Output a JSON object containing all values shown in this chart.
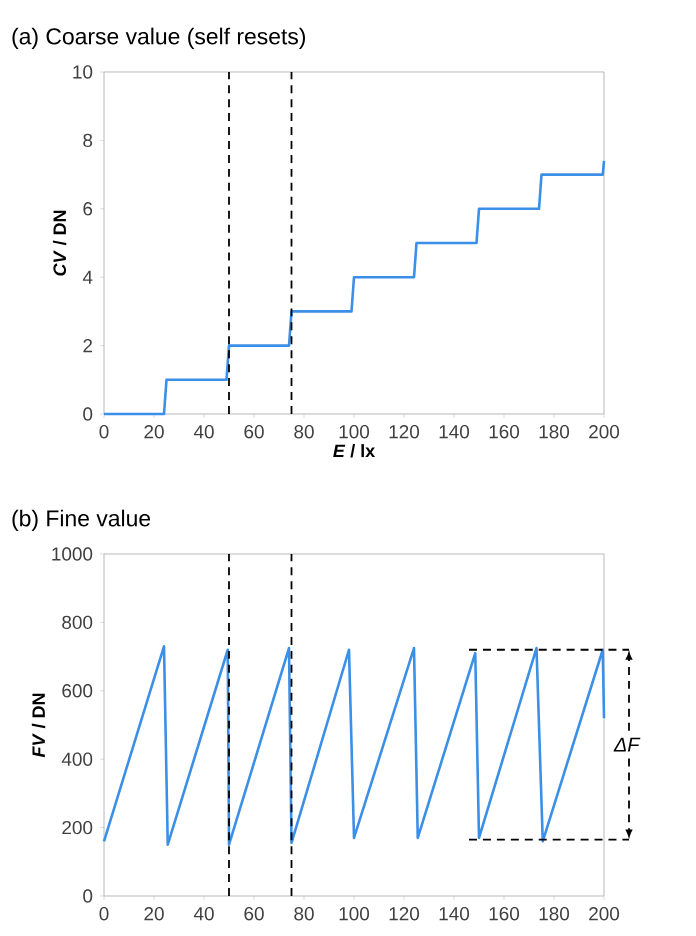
{
  "chart_data": [
    {
      "type": "line",
      "title": "(a) Coarse value (self resets)",
      "xlabel": "*E* / lx",
      "ylabel": "*CV* / DN",
      "x": [
        0,
        24,
        25,
        49,
        50,
        74,
        75,
        99,
        100,
        124,
        125,
        149,
        150,
        174,
        175,
        199.5,
        200
      ],
      "series": [
        {
          "color": "#3c8fe6",
          "values": [
            0,
            0,
            1,
            1,
            2,
            2,
            3,
            3,
            4,
            4,
            5,
            5,
            6,
            6,
            7,
            7,
            7.4
          ]
        }
      ],
      "xlim": [
        0,
        200
      ],
      "ylim": [
        0,
        10
      ],
      "xticks": [
        0,
        20,
        40,
        60,
        80,
        100,
        120,
        140,
        160,
        180,
        200
      ],
      "yticks": [
        0,
        2,
        4,
        6,
        8,
        10
      ],
      "ref_lines": [
        {
          "axis": "x",
          "value": 50,
          "line_style": "dashed"
        },
        {
          "axis": "x",
          "value": 75,
          "line_style": "dashed"
        }
      ]
    },
    {
      "type": "line",
      "title": "(b) Fine value",
      "ylabel": "*FV* / DN",
      "x": [
        0,
        24,
        25.5,
        49.5,
        50,
        74,
        75,
        98,
        100,
        124,
        125.5,
        148.5,
        150,
        173,
        175.5,
        199.5,
        200
      ],
      "series": [
        {
          "color": "#3c8fe6",
          "values": [
            160,
            730,
            150,
            720,
            150,
            725,
            155,
            720,
            170,
            725,
            170,
            710,
            170,
            725,
            160,
            720,
            520
          ]
        }
      ],
      "xlim": [
        0,
        200
      ],
      "ylim": [
        0,
        1000
      ],
      "xticks": [
        0,
        20,
        40,
        60,
        80,
        100,
        120,
        140,
        160,
        180,
        200
      ],
      "yticks": [
        0,
        200,
        400,
        600,
        800,
        1000
      ],
      "ref_lines": [
        {
          "axis": "x",
          "value": 50,
          "line_style": "dashed"
        },
        {
          "axis": "x",
          "value": 75,
          "line_style": "dashed"
        },
        {
          "axis": "y",
          "value": 720,
          "line_style": "dashed"
        },
        {
          "axis": "y",
          "value": 165,
          "line_style": "dashed"
        }
      ],
      "annotations": [
        "ΔF"
      ]
    }
  ]
}
